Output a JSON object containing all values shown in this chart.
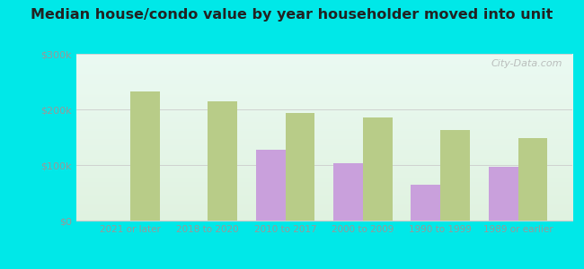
{
  "title": "Median house/condo value by year householder moved into unit",
  "categories": [
    "2021 or later",
    "2018 to 2020",
    "2010 to 2017",
    "2000 to 2009",
    "1990 to 1999",
    "1989 or earlier"
  ],
  "fairmount_values": [
    null,
    null,
    127000,
    103000,
    65000,
    97000
  ],
  "indiana_values": [
    232000,
    215000,
    193000,
    185000,
    163000,
    148000
  ],
  "fairmount_color": "#c9a0dc",
  "indiana_color": "#b8cc88",
  "background_outer": "#00e8e8",
  "ylim": [
    0,
    300000
  ],
  "yticks": [
    0,
    100000,
    200000,
    300000
  ],
  "ytick_labels": [
    "$0",
    "$100k",
    "$200k",
    "$300k"
  ],
  "watermark": "City-Data.com",
  "bar_width": 0.38,
  "tick_color": "#999999",
  "title_color": "#222222"
}
